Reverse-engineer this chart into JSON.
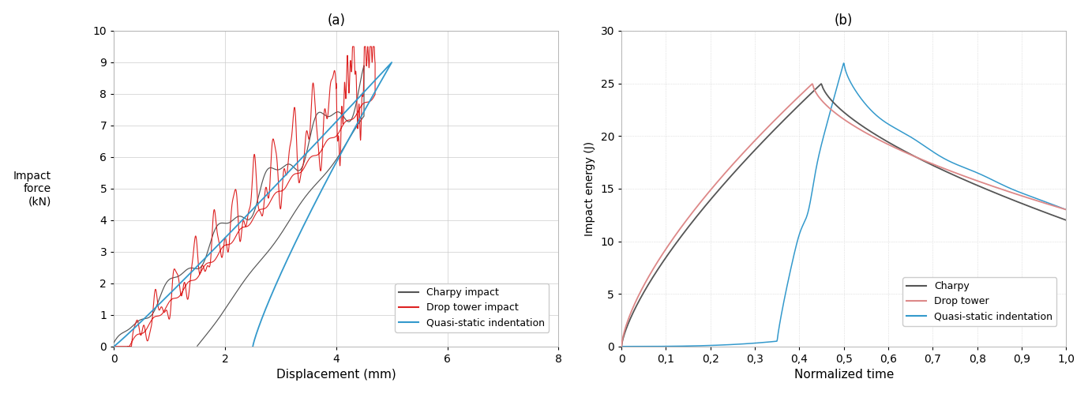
{
  "panel_a": {
    "title": "(a)",
    "xlabel": "Displacement (mm)",
    "ylabel": "Impact\nforce\n(kN)",
    "xlim": [
      0,
      8
    ],
    "ylim": [
      0,
      10
    ],
    "xticks": [
      0,
      2,
      4,
      6,
      8
    ],
    "yticks": [
      0,
      1,
      2,
      3,
      4,
      5,
      6,
      7,
      8,
      9,
      10
    ],
    "legend_labels": [
      "Charpy impact",
      "Drop tower impact",
      "Quasi-static indentation"
    ],
    "legend_colors": [
      "#555555",
      "#dd2222",
      "#3399cc"
    ]
  },
  "panel_b": {
    "title": "(b)",
    "xlabel": "Normalized time",
    "ylabel": "Impact energy (J)",
    "xlim": [
      0,
      1
    ],
    "ylim": [
      0,
      30
    ],
    "xticks": [
      0,
      0.1,
      0.2,
      0.3,
      0.4,
      0.5,
      0.6,
      0.7,
      0.8,
      0.9,
      1.0
    ],
    "yticks": [
      0,
      5,
      10,
      15,
      20,
      25,
      30
    ],
    "legend_labels": [
      "Charpy",
      "Drop tower",
      "Quasi-static indentation"
    ],
    "legend_colors": [
      "#555555",
      "#dd8888",
      "#3399cc"
    ]
  },
  "charpy_color": "#555555",
  "drop_tower_color": "#dd2222",
  "drop_tower_color_b": "#dd8888",
  "quasi_static_color": "#3399cc",
  "background_color": "#ffffff",
  "grid_color": "#cccccc"
}
